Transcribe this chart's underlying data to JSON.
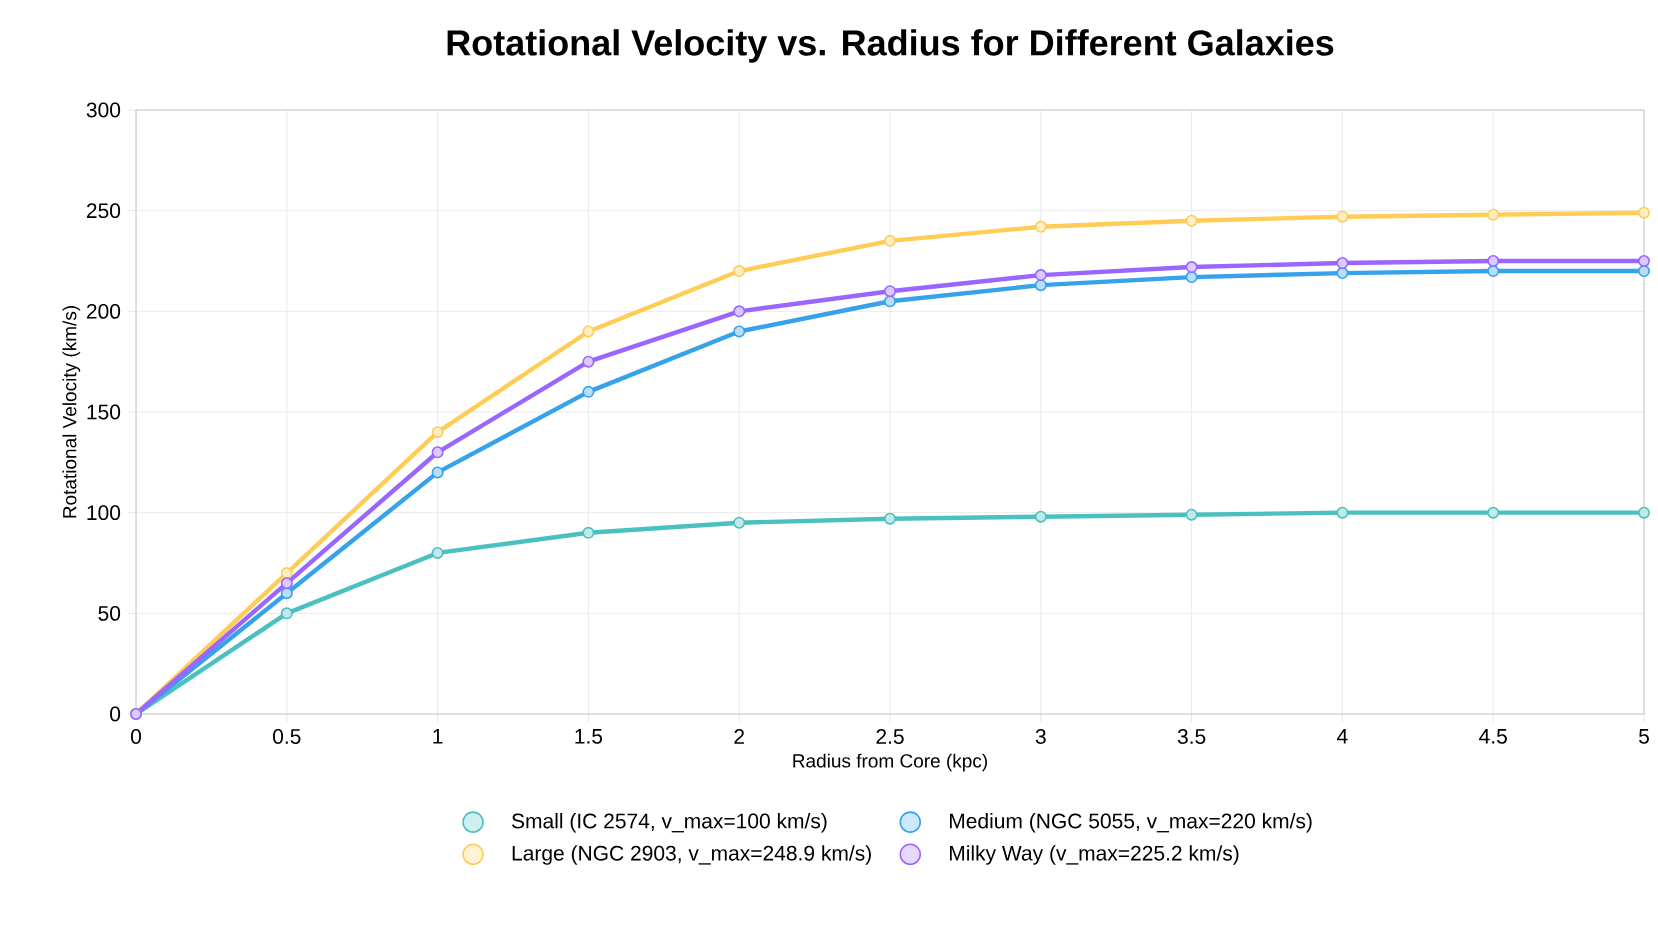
{
  "chart_data": {
    "type": "line",
    "title": "Rotational Velocity vs. Radius for Different Galaxies",
    "xlabel": "Radius from Core (kpc)",
    "ylabel": "Rotational Velocity (km/s)",
    "x": [
      0,
      0.5,
      1,
      1.5,
      2,
      2.5,
      3,
      3.5,
      4,
      4.5,
      5
    ],
    "xlim": [
      0,
      5
    ],
    "xticks": [
      0,
      0.5,
      1,
      1.5,
      2,
      2.5,
      3,
      3.5,
      4,
      4.5,
      5
    ],
    "ylim": [
      0,
      300
    ],
    "yticks": [
      0,
      50,
      100,
      150,
      200,
      250,
      300
    ],
    "grid": true,
    "legend": "bottom",
    "marker": "circle",
    "line_style": "solid",
    "series": [
      {
        "name": "Small (IC 2574, v_max=100 km/s)",
        "color": "#4bc0c0",
        "values": [
          0,
          50,
          80,
          90,
          95,
          97,
          98,
          99,
          100,
          100,
          100
        ]
      },
      {
        "name": "Medium (NGC 5055, v_max=220 km/s)",
        "color": "#36a2eb",
        "values": [
          0,
          60,
          120,
          160,
          190,
          205,
          213,
          217,
          219,
          220,
          220
        ]
      },
      {
        "name": "Large (NGC 2903, v_max=248.9 km/s)",
        "color": "#ffcd56",
        "values": [
          0,
          70,
          140,
          190,
          220,
          235,
          242,
          245,
          247,
          248,
          249
        ]
      },
      {
        "name": "Milky Way (v_max=225.2 km/s)",
        "color": "#9966ff",
        "values": [
          0,
          65,
          130,
          175,
          200,
          210,
          218,
          222,
          224,
          225,
          225
        ]
      }
    ]
  }
}
